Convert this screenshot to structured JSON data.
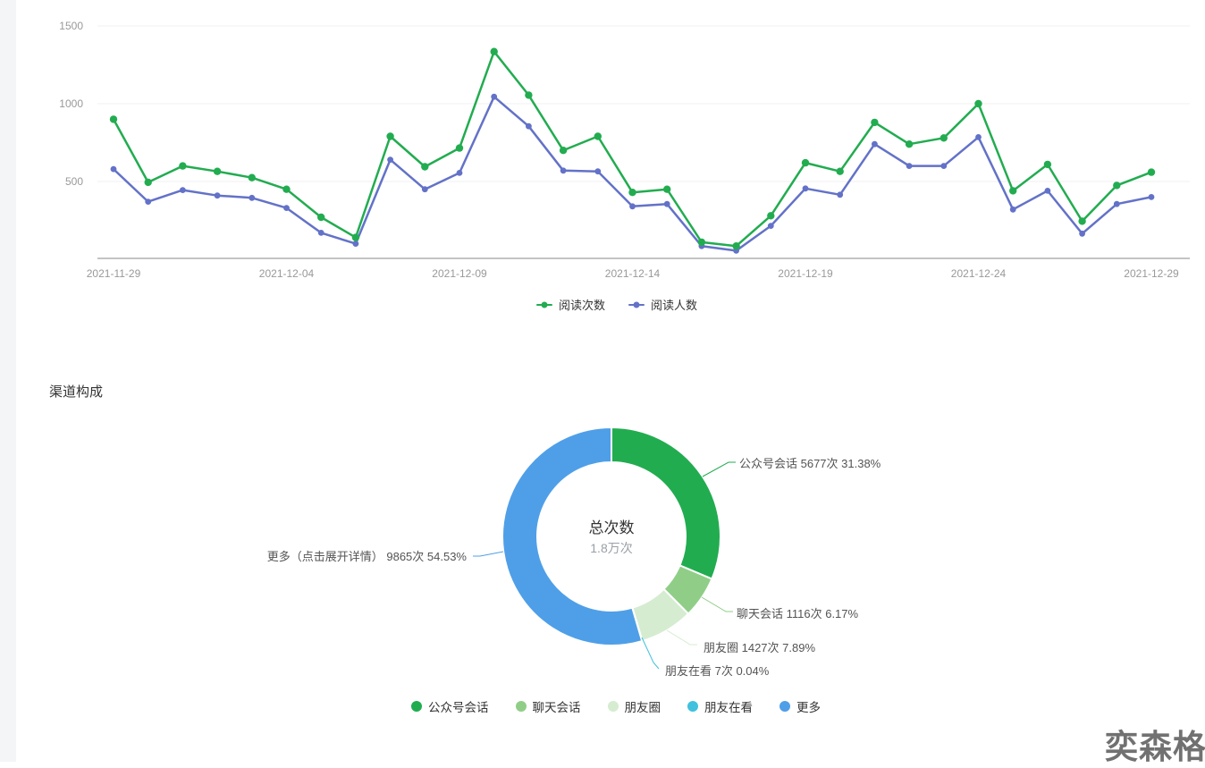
{
  "page": {
    "section_title": "渠道构成",
    "watermark": "奕森格",
    "background_color": "#ffffff",
    "left_strip_color": "#f4f5f7"
  },
  "chart_data": [
    {
      "type": "line",
      "title": "",
      "xlabel": "",
      "ylabel": "",
      "ylim": [
        0,
        1500
      ],
      "y_ticks": [
        500,
        1000,
        1500
      ],
      "grid": true,
      "legend_position": "bottom",
      "x_tick_labels": [
        "2021-11-29",
        "2021-12-04",
        "2021-12-09",
        "2021-12-14",
        "2021-12-19",
        "2021-12-24",
        "2021-12-29"
      ],
      "x": [
        "2021-11-29",
        "2021-11-30",
        "2021-12-01",
        "2021-12-02",
        "2021-12-03",
        "2021-12-04",
        "2021-12-05",
        "2021-12-06",
        "2021-12-07",
        "2021-12-08",
        "2021-12-09",
        "2021-12-10",
        "2021-12-11",
        "2021-12-12",
        "2021-12-13",
        "2021-12-14",
        "2021-12-15",
        "2021-12-16",
        "2021-12-17",
        "2021-12-18",
        "2021-12-19",
        "2021-12-20",
        "2021-12-21",
        "2021-12-22",
        "2021-12-23",
        "2021-12-24",
        "2021-12-25",
        "2021-12-26",
        "2021-12-27",
        "2021-12-28",
        "2021-12-29"
      ],
      "series": [
        {
          "name": "阅读次数",
          "color": "#22ac50",
          "values": [
            900,
            495,
            600,
            565,
            525,
            450,
            270,
            140,
            790,
            595,
            715,
            1335,
            1055,
            700,
            790,
            430,
            450,
            110,
            85,
            280,
            620,
            565,
            880,
            740,
            780,
            1000,
            440,
            610,
            245,
            475,
            560
          ]
        },
        {
          "name": "阅读人数",
          "color": "#6372c8",
          "values": [
            580,
            370,
            445,
            410,
            395,
            330,
            170,
            100,
            640,
            450,
            555,
            1045,
            855,
            570,
            565,
            340,
            355,
            85,
            55,
            215,
            455,
            415,
            740,
            600,
            600,
            785,
            320,
            440,
            165,
            355,
            400
          ]
        }
      ]
    },
    {
      "type": "pie",
      "title": "渠道构成",
      "center_title": "总次数",
      "center_value": "1.8万次",
      "legend_position": "bottom",
      "slices": [
        {
          "name": "公众号会话",
          "value": 5677,
          "unit": "次",
          "percent": 31.38,
          "label": "公众号会话 5677次 31.38%",
          "color": "#22ac50"
        },
        {
          "name": "聊天会话",
          "value": 1116,
          "unit": "次",
          "percent": 6.17,
          "label": "聊天会话 1116次 6.17%",
          "color": "#90ce88"
        },
        {
          "name": "朋友圈",
          "value": 1427,
          "unit": "次",
          "percent": 7.89,
          "label": "朋友圈 1427次 7.89%",
          "color": "#d5ecd0"
        },
        {
          "name": "朋友在看",
          "value": 7,
          "unit": "次",
          "percent": 0.04,
          "label": "朋友在看 7次 0.04%",
          "color": "#41c1de"
        },
        {
          "name": "更多",
          "value": 9865,
          "unit": "次",
          "percent": 54.53,
          "label": "更多（点击展开详情） 9865次 54.53%",
          "color": "#4f9fe8"
        }
      ]
    }
  ]
}
